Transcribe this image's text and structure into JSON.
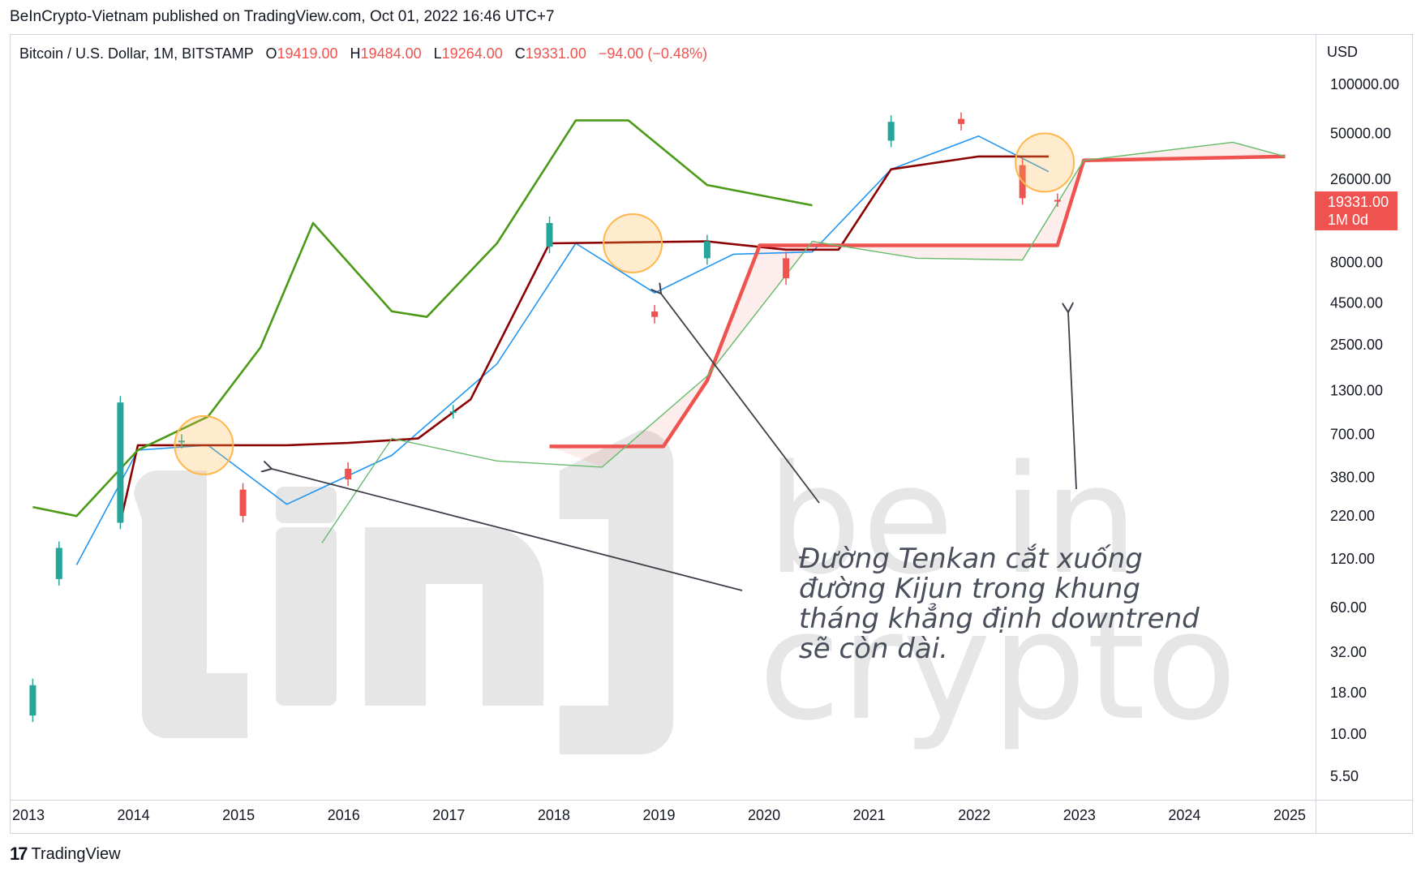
{
  "publisher": "BeInCrypto-Vietnam published on TradingView.com, Oct 01, 2022 16:46 UTC+7",
  "legend": {
    "symbol": "Bitcoin / U.S. Dollar, 1M, BITSTAMP",
    "o_label": "O",
    "o_value": "19419.00",
    "h_label": "H",
    "h_value": "19484.00",
    "l_label": "L",
    "l_value": "19264.00",
    "c_label": "C",
    "c_value": "19331.00",
    "change": "−94.00 (−0.48%)"
  },
  "currency": "USD",
  "price_badge": {
    "price": "19331.00",
    "period": "1M 0d"
  },
  "footer": {
    "logo": "17",
    "brand": "TradingView"
  },
  "annotation_lines": [
    "Đường Tenkan cắt xuống",
    "đường Kijun trong khung",
    "tháng khẳng định downtrend",
    "sẽ còn dài."
  ],
  "watermark": "be in crypto",
  "colors": {
    "up": "#26a69a",
    "down": "#ef5350",
    "tenkan": "#2196f3",
    "kijun": "#8b0000",
    "chikou": "#4caf50",
    "span_b": "#ef5350",
    "span_a": "#66bb6a",
    "highlight": "#ffb74d",
    "watermark": "#e6e6e6"
  },
  "chart_data": {
    "type": "candlestick",
    "scale": "log",
    "ylim": [
      4.5,
      150000
    ],
    "xlim": [
      2013.0,
      2025.3
    ],
    "y_ticks": [
      "100000.00",
      "50000.00",
      "26000.00",
      "8000.00",
      "4500.00",
      "2500.00",
      "1300.00",
      "700.00",
      "380.00",
      "220.00",
      "120.00",
      "60.00",
      "32.00",
      "18.00",
      "10.00",
      "5.50"
    ],
    "x_ticks": [
      "2013",
      "2014",
      "2015",
      "2016",
      "2017",
      "2018",
      "2019",
      "2020",
      "2021",
      "2022",
      "2023",
      "2024",
      "2025"
    ],
    "last_price": 19331.0,
    "candles_yearly_approx": [
      {
        "t": "2013-01",
        "o": 13,
        "c": 20
      },
      {
        "t": "2013-04",
        "o": 90,
        "c": 140
      },
      {
        "t": "2013-11",
        "o": 200,
        "c": 1100
      },
      {
        "t": "2014-06",
        "o": 630,
        "c": 640
      },
      {
        "t": "2015-01",
        "o": 320,
        "c": 220
      },
      {
        "t": "2016-01",
        "o": 430,
        "c": 370
      },
      {
        "t": "2017-01",
        "o": 960,
        "c": 970
      },
      {
        "t": "2017-12",
        "o": 10000,
        "c": 14000
      },
      {
        "t": "2018-12",
        "o": 4000,
        "c": 3700
      },
      {
        "t": "2019-06",
        "o": 8500,
        "c": 10800
      },
      {
        "t": "2020-03",
        "o": 8500,
        "c": 6400
      },
      {
        "t": "2021-03",
        "o": 45000,
        "c": 58800
      },
      {
        "t": "2021-11",
        "o": 61300,
        "c": 57000
      },
      {
        "t": "2022-06",
        "o": 31800,
        "c": 19900
      },
      {
        "t": "2022-10",
        "o": 19419,
        "c": 19331
      }
    ],
    "series": [
      {
        "name": "Tenkan",
        "points": [
          [
            "2013-06",
            110
          ],
          [
            "2014-01",
            560
          ],
          [
            "2014-09",
            600
          ],
          [
            "2015-06",
            260
          ],
          [
            "2016-06",
            520
          ],
          [
            "2017-06",
            1900
          ],
          [
            "2018-03",
            10500
          ],
          [
            "2018-12",
            5200
          ],
          [
            "2019-09",
            9000
          ],
          [
            "2020-06",
            9300
          ],
          [
            "2021-03",
            30000
          ],
          [
            "2022-01",
            48000
          ],
          [
            "2022-09",
            29000
          ]
        ]
      },
      {
        "name": "Kijun",
        "points": [
          [
            "2013-11",
            200
          ],
          [
            "2014-01",
            600
          ],
          [
            "2015-06",
            600
          ],
          [
            "2016-01",
            620
          ],
          [
            "2016-09",
            660
          ],
          [
            "2017-03",
            1150
          ],
          [
            "2017-12",
            10500
          ],
          [
            "2019-06",
            10800
          ],
          [
            "2020-03",
            9600
          ],
          [
            "2020-09",
            9600
          ],
          [
            "2021-03",
            30000
          ],
          [
            "2022-01",
            36000
          ],
          [
            "2022-09",
            36000
          ]
        ]
      },
      {
        "name": "Chikou",
        "points": [
          [
            "2013-01",
            250
          ],
          [
            "2013-06",
            220
          ],
          [
            "2014-01",
            560
          ],
          [
            "2014-09",
            900
          ],
          [
            "2015-03",
            2400
          ],
          [
            "2015-09",
            14000
          ],
          [
            "2016-06",
            4000
          ],
          [
            "2016-10",
            3700
          ],
          [
            "2017-06",
            10500
          ],
          [
            "2018-03",
            60000
          ],
          [
            "2018-09",
            60000
          ],
          [
            "2019-06",
            24000
          ],
          [
            "2020-06",
            18000
          ]
        ]
      },
      {
        "name": "Span B",
        "points": [
          [
            "2017-12",
            590
          ],
          [
            "2019-01",
            590
          ],
          [
            "2019-06",
            1500
          ],
          [
            "2019-12",
            10200
          ],
          [
            "2022-10",
            10200
          ],
          [
            "2023-01",
            34000
          ],
          [
            "2024-12",
            36000
          ]
        ]
      },
      {
        "name": "Span A",
        "points": [
          [
            "2015-10",
            150
          ],
          [
            "2016-06",
            660
          ],
          [
            "2017-06",
            480
          ],
          [
            "2018-06",
            440
          ],
          [
            "2019-06",
            1600
          ],
          [
            "2020-06",
            10800
          ],
          [
            "2021-06",
            8500
          ],
          [
            "2022-06",
            8300
          ],
          [
            "2023-01",
            34000
          ],
          [
            "2024-06",
            44000
          ],
          [
            "2024-12",
            36000
          ]
        ]
      }
    ]
  }
}
